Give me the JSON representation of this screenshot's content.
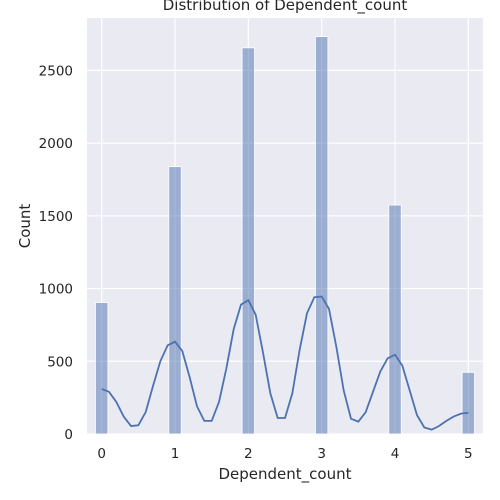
{
  "chart_data": {
    "type": "histogram",
    "title": "Distribution of Dependent_count",
    "xlabel": "Dependent_count",
    "ylabel": "Count",
    "xlim": [
      -0.2,
      5.2
    ],
    "ylim": [
      0,
      2860
    ],
    "x_ticks": [
      0,
      1,
      2,
      3,
      4,
      5
    ],
    "y_ticks": [
      0,
      500,
      1000,
      1500,
      2000,
      2500
    ],
    "grid": true,
    "bar_color": "#4c72b0",
    "bars": [
      {
        "x": 0,
        "count": 904
      },
      {
        "x": 1,
        "count": 1838
      },
      {
        "x": 2,
        "count": 2655
      },
      {
        "x": 3,
        "count": 2732
      },
      {
        "x": 4,
        "count": 1574
      },
      {
        "x": 5,
        "count": 424
      }
    ],
    "kde": {
      "name": "kde",
      "color": "#4c72b0",
      "x": [
        0,
        0.1,
        0.2,
        0.3,
        0.4,
        0.5,
        0.6,
        0.7,
        0.8,
        0.9,
        1.0,
        1.1,
        1.2,
        1.3,
        1.4,
        1.5,
        1.6,
        1.7,
        1.8,
        1.9,
        2.0,
        2.1,
        2.2,
        2.3,
        2.4,
        2.5,
        2.6,
        2.7,
        2.8,
        2.9,
        3.0,
        3.1,
        3.2,
        3.3,
        3.4,
        3.5,
        3.6,
        3.7,
        3.8,
        3.9,
        4.0,
        4.1,
        4.2,
        4.3,
        4.4,
        4.5,
        4.6,
        4.7,
        4.8,
        4.9,
        5.0
      ],
      "y": [
        310,
        290,
        220,
        120,
        55,
        60,
        150,
        330,
        500,
        610,
        635,
        570,
        390,
        190,
        90,
        90,
        220,
        450,
        720,
        890,
        920,
        820,
        560,
        280,
        110,
        110,
        280,
        580,
        830,
        940,
        945,
        860,
        600,
        300,
        105,
        85,
        150,
        290,
        430,
        520,
        545,
        470,
        300,
        130,
        45,
        30,
        55,
        90,
        120,
        140,
        145
      ]
    }
  }
}
